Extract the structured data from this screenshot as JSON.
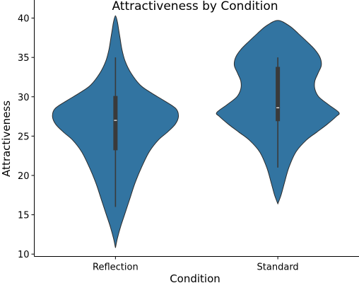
{
  "chart_data": {
    "type": "violin",
    "title": "Attractiveness by Condition",
    "xlabel": "Condition",
    "ylabel": "Attractiveness",
    "categories": [
      "Reflection",
      "Standard"
    ],
    "ylim": [
      9.7,
      42.3
    ],
    "yticks": [
      10,
      15,
      20,
      25,
      30,
      35,
      40
    ],
    "color": "#3274a1",
    "edge_color": "#2b2b2b",
    "box_color": "#3a3a3a",
    "median_color": "#ffffff",
    "grid": false,
    "violins": [
      {
        "category": "Reflection",
        "whisker_low": 16,
        "q1": 23.2,
        "median": 27,
        "q3": 30.1,
        "whisker_high": 35,
        "density": [
          [
            10.8,
            0
          ],
          [
            12,
            0.03
          ],
          [
            13.5,
            0.08
          ],
          [
            15,
            0.14
          ],
          [
            17,
            0.22
          ],
          [
            19,
            0.3
          ],
          [
            21,
            0.4
          ],
          [
            23,
            0.52
          ],
          [
            24.5,
            0.66
          ],
          [
            25.5,
            0.8
          ],
          [
            26.5,
            0.92
          ],
          [
            27.5,
            0.97
          ],
          [
            28.5,
            0.93
          ],
          [
            29.5,
            0.75
          ],
          [
            30.5,
            0.55
          ],
          [
            31.5,
            0.38
          ],
          [
            33,
            0.24
          ],
          [
            34.5,
            0.15
          ],
          [
            36,
            0.1
          ],
          [
            37.5,
            0.07
          ],
          [
            38.5,
            0.05
          ],
          [
            39.5,
            0.03
          ],
          [
            40.3,
            0
          ]
        ]
      },
      {
        "category": "Standard",
        "whisker_low": 21,
        "q1": 26.9,
        "median": 28.6,
        "q3": 33.8,
        "whisker_high": 35,
        "density": [
          [
            16.4,
            0
          ],
          [
            17.5,
            0.05
          ],
          [
            19,
            0.1
          ],
          [
            21,
            0.17
          ],
          [
            23,
            0.28
          ],
          [
            24.5,
            0.44
          ],
          [
            25.5,
            0.6
          ],
          [
            26.5,
            0.76
          ],
          [
            27.5,
            0.9
          ],
          [
            28,
            0.94
          ],
          [
            29,
            0.78
          ],
          [
            30,
            0.63
          ],
          [
            31,
            0.57
          ],
          [
            32,
            0.57
          ],
          [
            33,
            0.62
          ],
          [
            34,
            0.67
          ],
          [
            35,
            0.65
          ],
          [
            36,
            0.57
          ],
          [
            37,
            0.45
          ],
          [
            38,
            0.32
          ],
          [
            39,
            0.18
          ],
          [
            39.7,
            0
          ]
        ]
      }
    ]
  }
}
